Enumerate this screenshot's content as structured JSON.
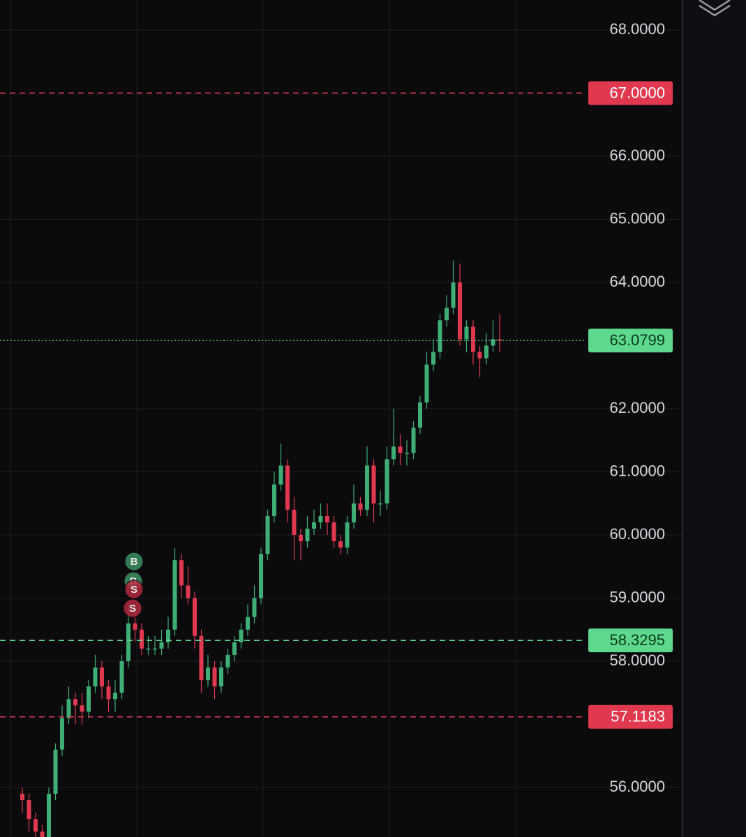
{
  "chart_data": {
    "type": "candlestick",
    "ylim": [
      55.215,
      68.475
    ],
    "yticks": [
      {
        "value": 68,
        "label": "68.0000"
      },
      {
        "value": 66,
        "label": "66.0000"
      },
      {
        "value": 65,
        "label": "65.0000"
      },
      {
        "value": 64,
        "label": "64.0000"
      },
      {
        "value": 62,
        "label": "62.0000"
      },
      {
        "value": 61,
        "label": "61.0000"
      },
      {
        "value": 60,
        "label": "60.0000"
      },
      {
        "value": 59,
        "label": "59.0000"
      },
      {
        "value": 58,
        "label": "58.0000"
      },
      {
        "value": 56,
        "label": "56.0000"
      }
    ],
    "grid": true,
    "up_color": "#3fae74",
    "down_color": "#e0394f",
    "open": [
      55.9,
      55.8,
      55.5,
      55.3,
      55.2,
      55.9,
      56.6,
      57.1,
      57.4,
      57.3,
      57.2,
      57.6,
      57.9,
      57.6,
      57.4,
      57.5,
      58.0,
      58.6,
      58.5,
      58.2,
      58.2,
      58.2,
      58.3,
      58.5,
      59.6,
      59.2,
      59.0,
      58.4,
      57.7,
      57.9,
      57.6,
      57.9,
      58.1,
      58.3,
      58.5,
      58.7,
      59.0,
      59.7,
      60.3,
      60.8,
      61.1,
      60.4,
      60.0,
      59.9,
      60.1,
      60.2,
      60.3,
      60.2,
      59.9,
      59.8,
      60.2,
      60.5,
      60.4,
      61.1,
      60.5,
      60.5,
      61.2,
      61.4,
      61.3,
      61.3,
      61.7,
      62.1,
      62.7,
      62.9,
      63.4,
      63.6,
      64.0,
      63.1,
      63.3,
      62.9,
      62.8,
      63.0,
      63.1
    ],
    "high": [
      56.0,
      55.9,
      55.6,
      55.4,
      56.0,
      56.7,
      57.3,
      57.6,
      57.5,
      57.5,
      57.7,
      58.1,
      58.0,
      57.7,
      57.7,
      58.1,
      58.9,
      58.8,
      58.6,
      58.4,
      58.4,
      58.5,
      58.7,
      59.8,
      59.7,
      59.5,
      59.1,
      58.5,
      58.1,
      58.0,
      58.0,
      58.2,
      58.4,
      58.6,
      58.9,
      59.2,
      59.8,
      60.4,
      61.0,
      61.45,
      61.2,
      60.6,
      60.1,
      60.3,
      60.4,
      60.5,
      60.5,
      60.3,
      60.0,
      60.3,
      60.8,
      60.6,
      61.4,
      61.2,
      60.7,
      61.4,
      62.0,
      61.6,
      61.5,
      61.8,
      62.2,
      62.9,
      63.1,
      63.5,
      63.8,
      64.35,
      64.3,
      63.4,
      63.4,
      63.0,
      63.2,
      63.4,
      63.5
    ],
    "low": [
      55.6,
      55.3,
      55.2,
      55.1,
      55.1,
      55.8,
      56.5,
      57.0,
      57.0,
      57.0,
      57.1,
      57.5,
      57.4,
      57.2,
      57.2,
      57.4,
      57.9,
      58.3,
      58.1,
      58.1,
      58.1,
      58.1,
      58.2,
      58.4,
      59.0,
      58.9,
      58.2,
      57.5,
      57.6,
      57.4,
      57.5,
      57.8,
      58.0,
      58.2,
      58.4,
      58.6,
      58.9,
      59.6,
      60.2,
      60.7,
      60.2,
      59.6,
      59.6,
      59.8,
      60.0,
      60.1,
      60.0,
      59.8,
      59.7,
      59.7,
      60.1,
      60.3,
      60.3,
      60.2,
      60.3,
      60.4,
      61.1,
      61.1,
      61.1,
      61.2,
      61.6,
      62.0,
      62.6,
      62.8,
      63.3,
      63.5,
      63.0,
      62.9,
      62.7,
      62.5,
      62.7,
      62.9,
      62.9
    ],
    "close": [
      55.8,
      55.5,
      55.3,
      55.2,
      55.9,
      56.6,
      57.1,
      57.4,
      57.3,
      57.2,
      57.6,
      57.9,
      57.6,
      57.4,
      57.5,
      58.0,
      58.6,
      58.5,
      58.2,
      58.2,
      58.2,
      58.3,
      58.5,
      59.6,
      59.2,
      59.0,
      58.4,
      57.7,
      57.9,
      57.6,
      57.9,
      58.1,
      58.3,
      58.5,
      58.7,
      59.0,
      59.7,
      60.3,
      60.8,
      61.1,
      60.4,
      60.0,
      59.9,
      60.1,
      60.2,
      60.3,
      60.2,
      59.9,
      59.8,
      60.2,
      60.5,
      60.4,
      61.1,
      60.5,
      60.5,
      61.2,
      61.4,
      61.3,
      61.3,
      61.7,
      62.1,
      62.7,
      62.9,
      63.4,
      63.6,
      64.0,
      63.1,
      63.3,
      62.9,
      62.8,
      63.0,
      63.1,
      63.08
    ],
    "price_lines": [
      {
        "value": 67,
        "label": "67.0000",
        "color": "#e0394f",
        "style": "dashed"
      },
      {
        "value": 63.0799,
        "label": "63.0799",
        "color": "#5ed88e",
        "style": "dotted"
      },
      {
        "value": 58.3295,
        "label": "58.3295",
        "color": "#5ed88e",
        "style": "dashed"
      },
      {
        "value": 57.1183,
        "label": "57.1183",
        "color": "#e0394f",
        "style": "dashed"
      }
    ],
    "trade_markers": [
      "B",
      "B",
      "S",
      "S"
    ]
  }
}
